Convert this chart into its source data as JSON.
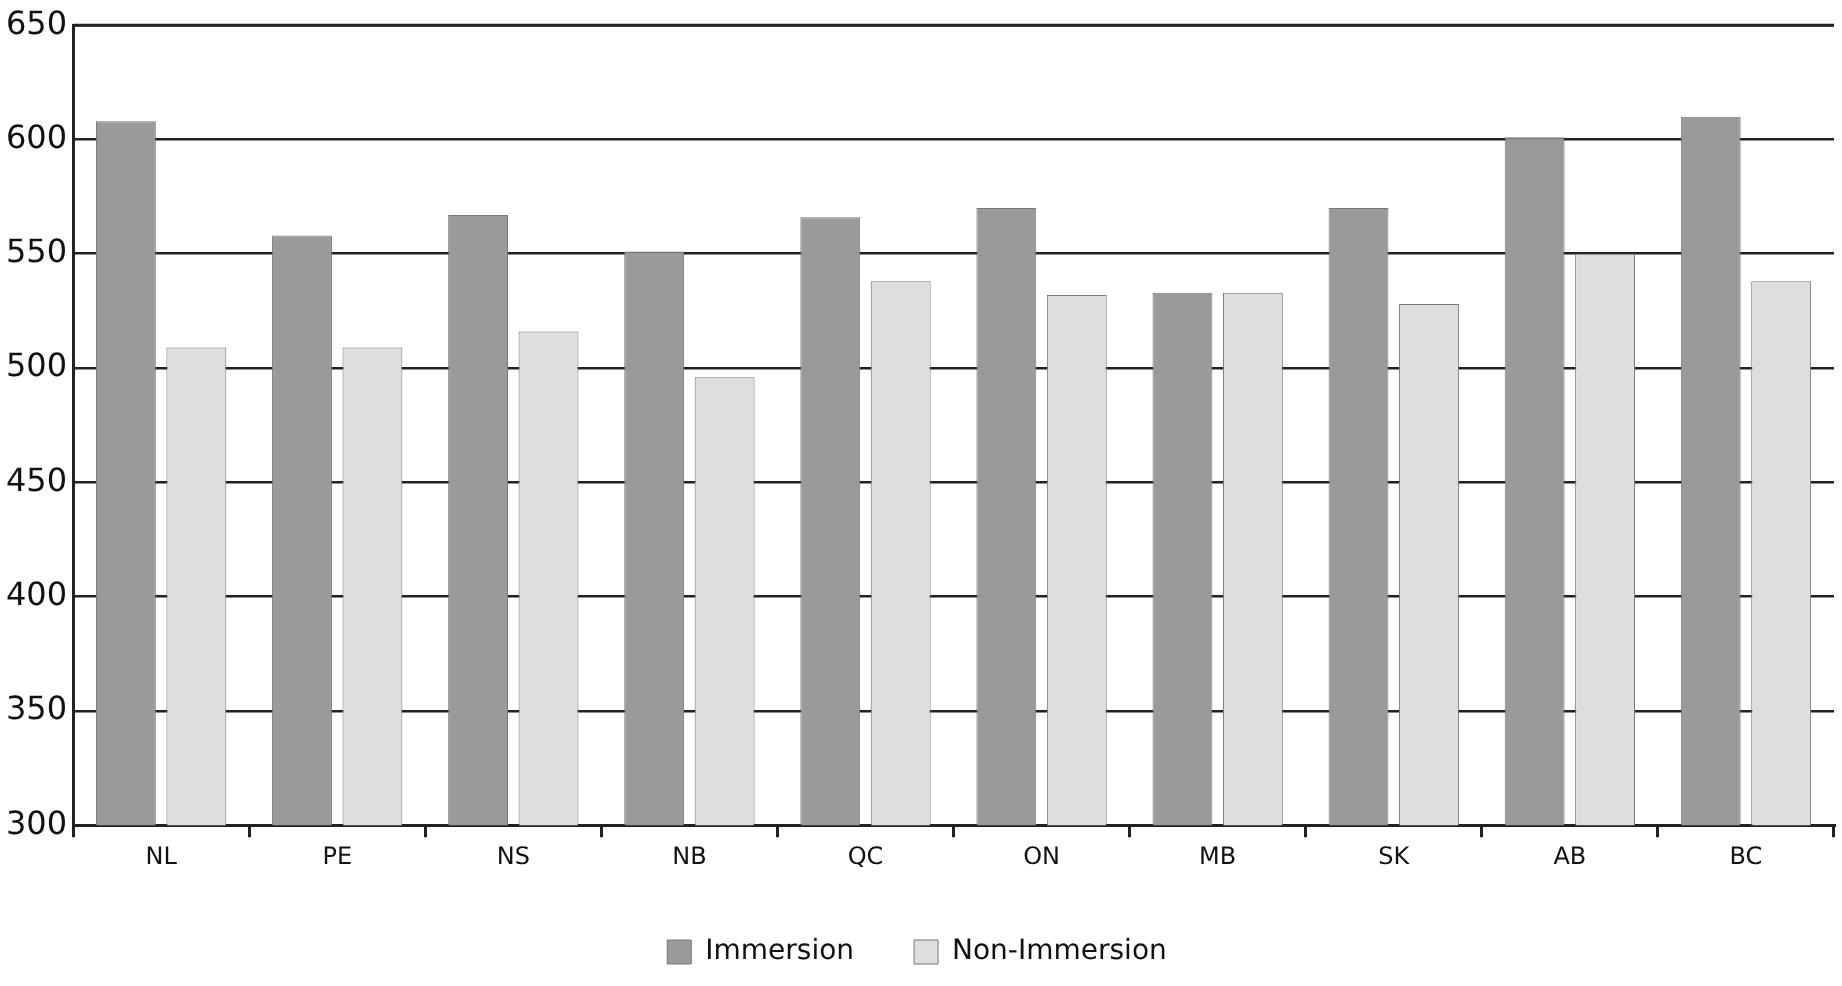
{
  "chart_data": {
    "type": "bar",
    "categories": [
      "NL",
      "PE",
      "NS",
      "NB",
      "QC",
      "ON",
      "MB",
      "SK",
      "AB",
      "BC"
    ],
    "series": [
      {
        "name": "Immersion",
        "color": "#9a9a9a",
        "values": [
          608,
          558,
          567,
          551,
          566,
          570,
          533,
          570,
          601,
          610
        ]
      },
      {
        "name": "Non-Immersion",
        "color": "#dedede",
        "values": [
          509,
          509,
          516,
          496,
          538,
          532,
          533,
          528,
          550,
          538
        ]
      }
    ],
    "ylim": [
      300,
      650
    ],
    "yticks": [
      300,
      350,
      400,
      450,
      500,
      550,
      600,
      650
    ],
    "grid": "y",
    "legend": "bottom"
  }
}
